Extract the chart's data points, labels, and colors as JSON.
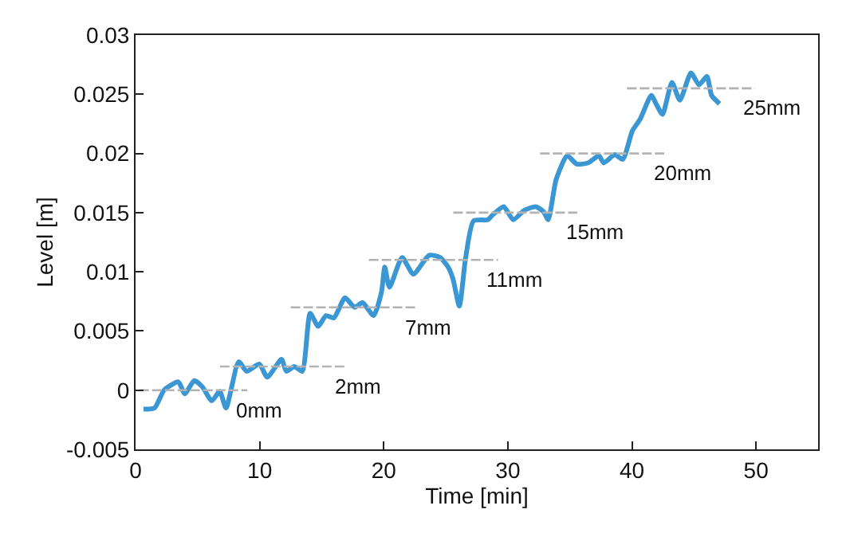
{
  "chart_data": {
    "type": "line",
    "xlabel": "Time [min]",
    "ylabel": "Level [m]",
    "xlim": [
      0,
      55
    ],
    "xticks": [
      0,
      10,
      20,
      30,
      40,
      50
    ],
    "ylim": [
      -0.005,
      0.03
    ],
    "yticks": [
      -0.005,
      0,
      0.005,
      0.01,
      0.015,
      0.02,
      0.025,
      0.03
    ],
    "marker": "none",
    "series": [
      {
        "color": "#3b97d3",
        "line_style": "solid",
        "x": [
          0.64,
          1.53,
          2.3,
          3.45,
          3.96,
          4.73,
          5.37,
          6.14,
          6.78,
          7.29,
          8.31,
          8.95,
          9.97,
          10.61,
          11.76,
          12.15,
          12.79,
          13.43,
          14.07,
          14.71,
          15.35,
          15.98,
          16.88,
          17.65,
          18.29,
          19.18,
          19.82,
          20.08,
          20.46,
          21.48,
          22.38,
          23.66,
          24.55,
          25.19,
          25.58,
          26.09,
          26.6,
          27.24,
          28.39,
          28.77,
          29.67,
          30.43,
          31.33,
          32.23,
          32.86,
          33.25,
          33.89,
          34.78,
          35.55,
          36.45,
          37.34,
          37.72,
          38.62,
          39.26,
          40.03,
          40.66,
          41.56,
          41.94,
          42.46,
          43.22,
          43.86,
          44.76,
          45.4,
          46.04,
          46.42,
          47.06
        ],
        "values": [
          -0.0016,
          -0.0015,
          0.0,
          0.0007,
          -0.0003,
          0.0008,
          0.0003,
          -0.0009,
          -0.0001,
          -0.0015,
          0.0024,
          0.0016,
          0.0022,
          0.0011,
          0.0026,
          0.0016,
          0.002,
          0.0016,
          0.0065,
          0.0054,
          0.0063,
          0.0061,
          0.0078,
          0.007,
          0.0074,
          0.0063,
          0.0083,
          0.0104,
          0.0087,
          0.0112,
          0.0098,
          0.0114,
          0.0112,
          0.0104,
          0.0094,
          0.0071,
          0.0112,
          0.0143,
          0.0144,
          0.0148,
          0.0155,
          0.0144,
          0.0152,
          0.0155,
          0.0151,
          0.0144,
          0.0178,
          0.0198,
          0.0191,
          0.0192,
          0.0198,
          0.0192,
          0.0199,
          0.0195,
          0.0219,
          0.0229,
          0.0249,
          0.0242,
          0.0233,
          0.026,
          0.0245,
          0.0268,
          0.0258,
          0.0265,
          0.0249,
          0.0242
        ]
      },
      {
        "color": "#b3b3b3",
        "line_style": "dashed",
        "x": [
          0.3,
          9
        ],
        "values": [
          0,
          0
        ]
      },
      {
        "color": "#b3b3b3",
        "line_style": "dashed",
        "x": [
          6.8,
          16.9
        ],
        "values": [
          0.002,
          0.002
        ]
      },
      {
        "color": "#b3b3b3",
        "line_style": "dashed",
        "x": [
          12.5,
          22.6
        ],
        "values": [
          0.007,
          0.007
        ]
      },
      {
        "color": "#b3b3b3",
        "line_style": "dashed",
        "x": [
          18.8,
          29.2
        ],
        "values": [
          0.011,
          0.011
        ]
      },
      {
        "color": "#b3b3b3",
        "line_style": "dashed",
        "x": [
          25.6,
          35.6
        ],
        "values": [
          0.015,
          0.015
        ]
      },
      {
        "color": "#b3b3b3",
        "line_style": "dashed",
        "x": [
          32.6,
          42.6
        ],
        "values": [
          0.02,
          0.02
        ]
      },
      {
        "color": "#b3b3b3",
        "line_style": "dashed",
        "x": [
          39.6,
          49.9
        ],
        "values": [
          0.0255,
          0.0255
        ]
      }
    ],
    "annotations": [
      {
        "text": "0mm",
        "x": 9,
        "y": 0
      },
      {
        "text": "2mm",
        "x": 16.9,
        "y": 0.002
      },
      {
        "text": "7mm",
        "x": 22.6,
        "y": 0.007
      },
      {
        "text": "11mm",
        "x": 29.2,
        "y": 0.011
      },
      {
        "text": "15mm",
        "x": 35.6,
        "y": 0.015
      },
      {
        "text": "20mm",
        "x": 42.6,
        "y": 0.02
      },
      {
        "text": "25mm",
        "x": 49.9,
        "y": 0.0255
      }
    ]
  }
}
